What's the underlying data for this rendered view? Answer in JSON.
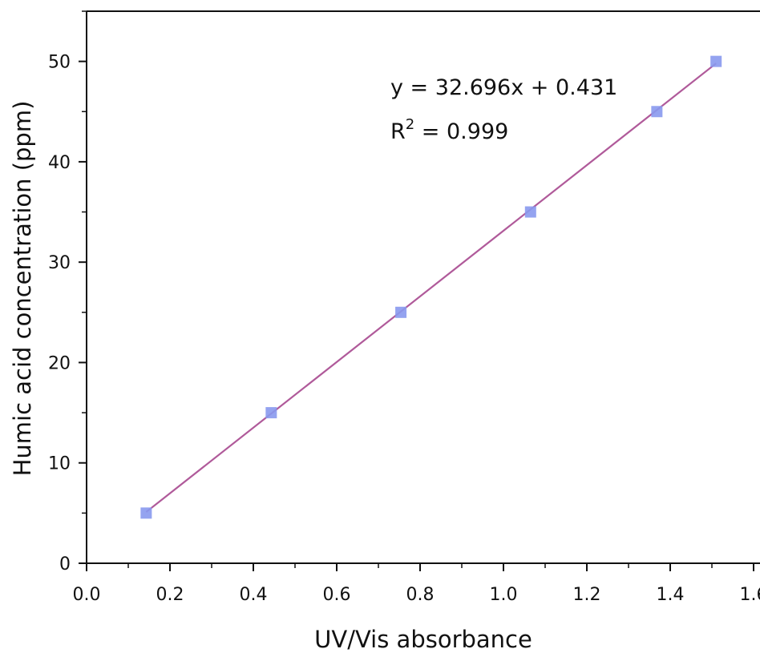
{
  "chart_data": {
    "type": "scatter",
    "title": "",
    "xlabel": "UV/Vis absorbance",
    "ylabel": "Humic acid concentration (ppm)",
    "xlim": [
      0.0,
      1.65
    ],
    "ylim": [
      0,
      55
    ],
    "xticks": [
      "0.0",
      "0.2",
      "0.4",
      "0.6",
      "0.8",
      "1.0",
      "1.2",
      "1.4",
      "1.6"
    ],
    "yticks": [
      "0",
      "10",
      "20",
      "30",
      "40",
      "50"
    ],
    "series": [
      {
        "x": [
          0.143,
          0.443,
          0.754,
          1.065,
          1.368,
          1.51
        ],
        "y": [
          5,
          15,
          25,
          35,
          45,
          50
        ],
        "marker": "square",
        "color": "#8899ee"
      }
    ],
    "fit": {
      "slope": 32.696,
      "intercept": 0.431,
      "x_range": [
        0.143,
        1.51
      ],
      "color": "#b05a9a"
    },
    "annotations": {
      "equation": "y = 32.696x + 0.431",
      "r2_prefix": "R",
      "r2_sup": "2",
      "r2_value": " = 0.999"
    },
    "grid": false,
    "legend": "none"
  }
}
